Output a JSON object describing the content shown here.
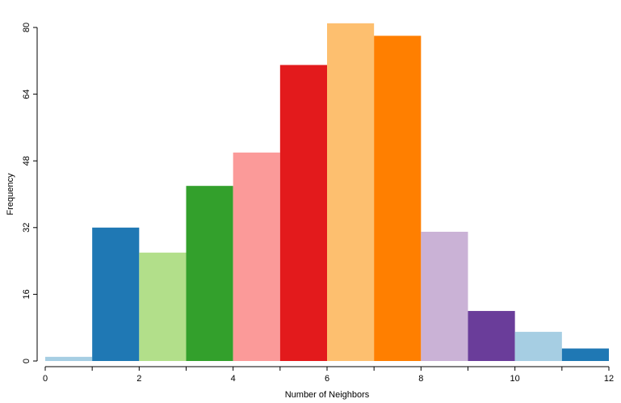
{
  "chart_data": {
    "type": "bar",
    "title": "",
    "xlabel": "Number of Neighbors",
    "ylabel": "Frequency",
    "xlim": [
      0,
      12
    ],
    "ylim": [
      0,
      80
    ],
    "x_ticks": [
      0,
      1,
      2,
      3,
      4,
      5,
      6,
      7,
      8,
      9,
      10,
      11,
      12
    ],
    "x_tick_labels": [
      "0",
      "",
      "2",
      "",
      "4",
      "",
      "6",
      "",
      "8",
      "",
      "10",
      "",
      "12"
    ],
    "y_ticks": [
      0,
      16,
      32,
      48,
      64,
      80
    ],
    "y_tick_labels": [
      "0",
      "16",
      "32",
      "48",
      "64",
      "80"
    ],
    "grid": false,
    "legend": "none",
    "bins": [
      {
        "start": 0,
        "end": 1,
        "value": 1,
        "color": "#a6cee3"
      },
      {
        "start": 1,
        "end": 2,
        "value": 32,
        "color": "#1f78b4"
      },
      {
        "start": 2,
        "end": 3,
        "value": 26,
        "color": "#b2df8a"
      },
      {
        "start": 3,
        "end": 4,
        "value": 42,
        "color": "#33a02c"
      },
      {
        "start": 4,
        "end": 5,
        "value": 50,
        "color": "#fb9a99"
      },
      {
        "start": 5,
        "end": 6,
        "value": 71,
        "color": "#e31a1c"
      },
      {
        "start": 6,
        "end": 7,
        "value": 81,
        "color": "#fdbf6f"
      },
      {
        "start": 7,
        "end": 8,
        "value": 78,
        "color": "#ff7f00"
      },
      {
        "start": 8,
        "end": 9,
        "value": 31,
        "color": "#cab2d6"
      },
      {
        "start": 9,
        "end": 10,
        "value": 12,
        "color": "#6a3d9a"
      },
      {
        "start": 10,
        "end": 11,
        "value": 7,
        "color": "#a6cee3"
      },
      {
        "start": 11,
        "end": 12,
        "value": 3,
        "color": "#1f78b4"
      }
    ]
  }
}
